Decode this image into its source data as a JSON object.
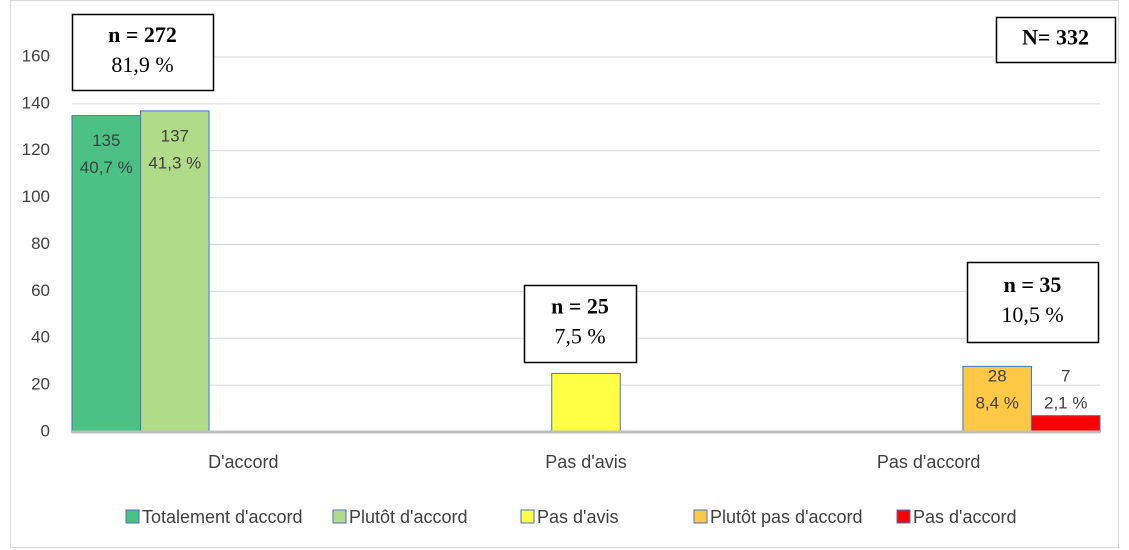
{
  "chart_data": {
    "type": "bar",
    "categories": [
      "D'accord",
      "Pas d'avis",
      "Pas d'accord"
    ],
    "series": [
      {
        "name": "Totalement d'accord",
        "color": "#4cc184",
        "values": [
          135,
          null,
          null
        ],
        "percent_labels": [
          "40,7 %",
          null,
          null
        ]
      },
      {
        "name": "Plutôt d'accord",
        "color": "#b0dc8a",
        "values": [
          137,
          null,
          null
        ],
        "percent_labels": [
          "41,3 %",
          null,
          null
        ]
      },
      {
        "name": "Pas d'avis",
        "color": "#ffff44",
        "values": [
          null,
          25,
          null
        ],
        "percent_labels": [
          null,
          null,
          null
        ]
      },
      {
        "name": "Plutôt pas d'accord",
        "color": "#ffc845",
        "values": [
          null,
          null,
          28
        ],
        "percent_labels": [
          null,
          null,
          "8,4 %"
        ]
      },
      {
        "name": "Pas d'accord",
        "color": "#ff0000",
        "values": [
          null,
          null,
          7
        ],
        "percent_labels": [
          null,
          null,
          "2,1 %"
        ]
      }
    ],
    "ylim": [
      0,
      160
    ],
    "yticks": [
      0,
      20,
      40,
      60,
      80,
      100,
      120,
      140,
      160
    ],
    "grid": true,
    "legend": "bottom",
    "annotations": [
      {
        "lines": [
          "n = 272",
          "81,9 %"
        ]
      },
      {
        "lines": [
          "n = 25",
          "7,5 %"
        ]
      },
      {
        "lines": [
          "n = 35",
          "10,5 %"
        ]
      },
      {
        "lines": [
          "N= 332"
        ]
      }
    ]
  }
}
